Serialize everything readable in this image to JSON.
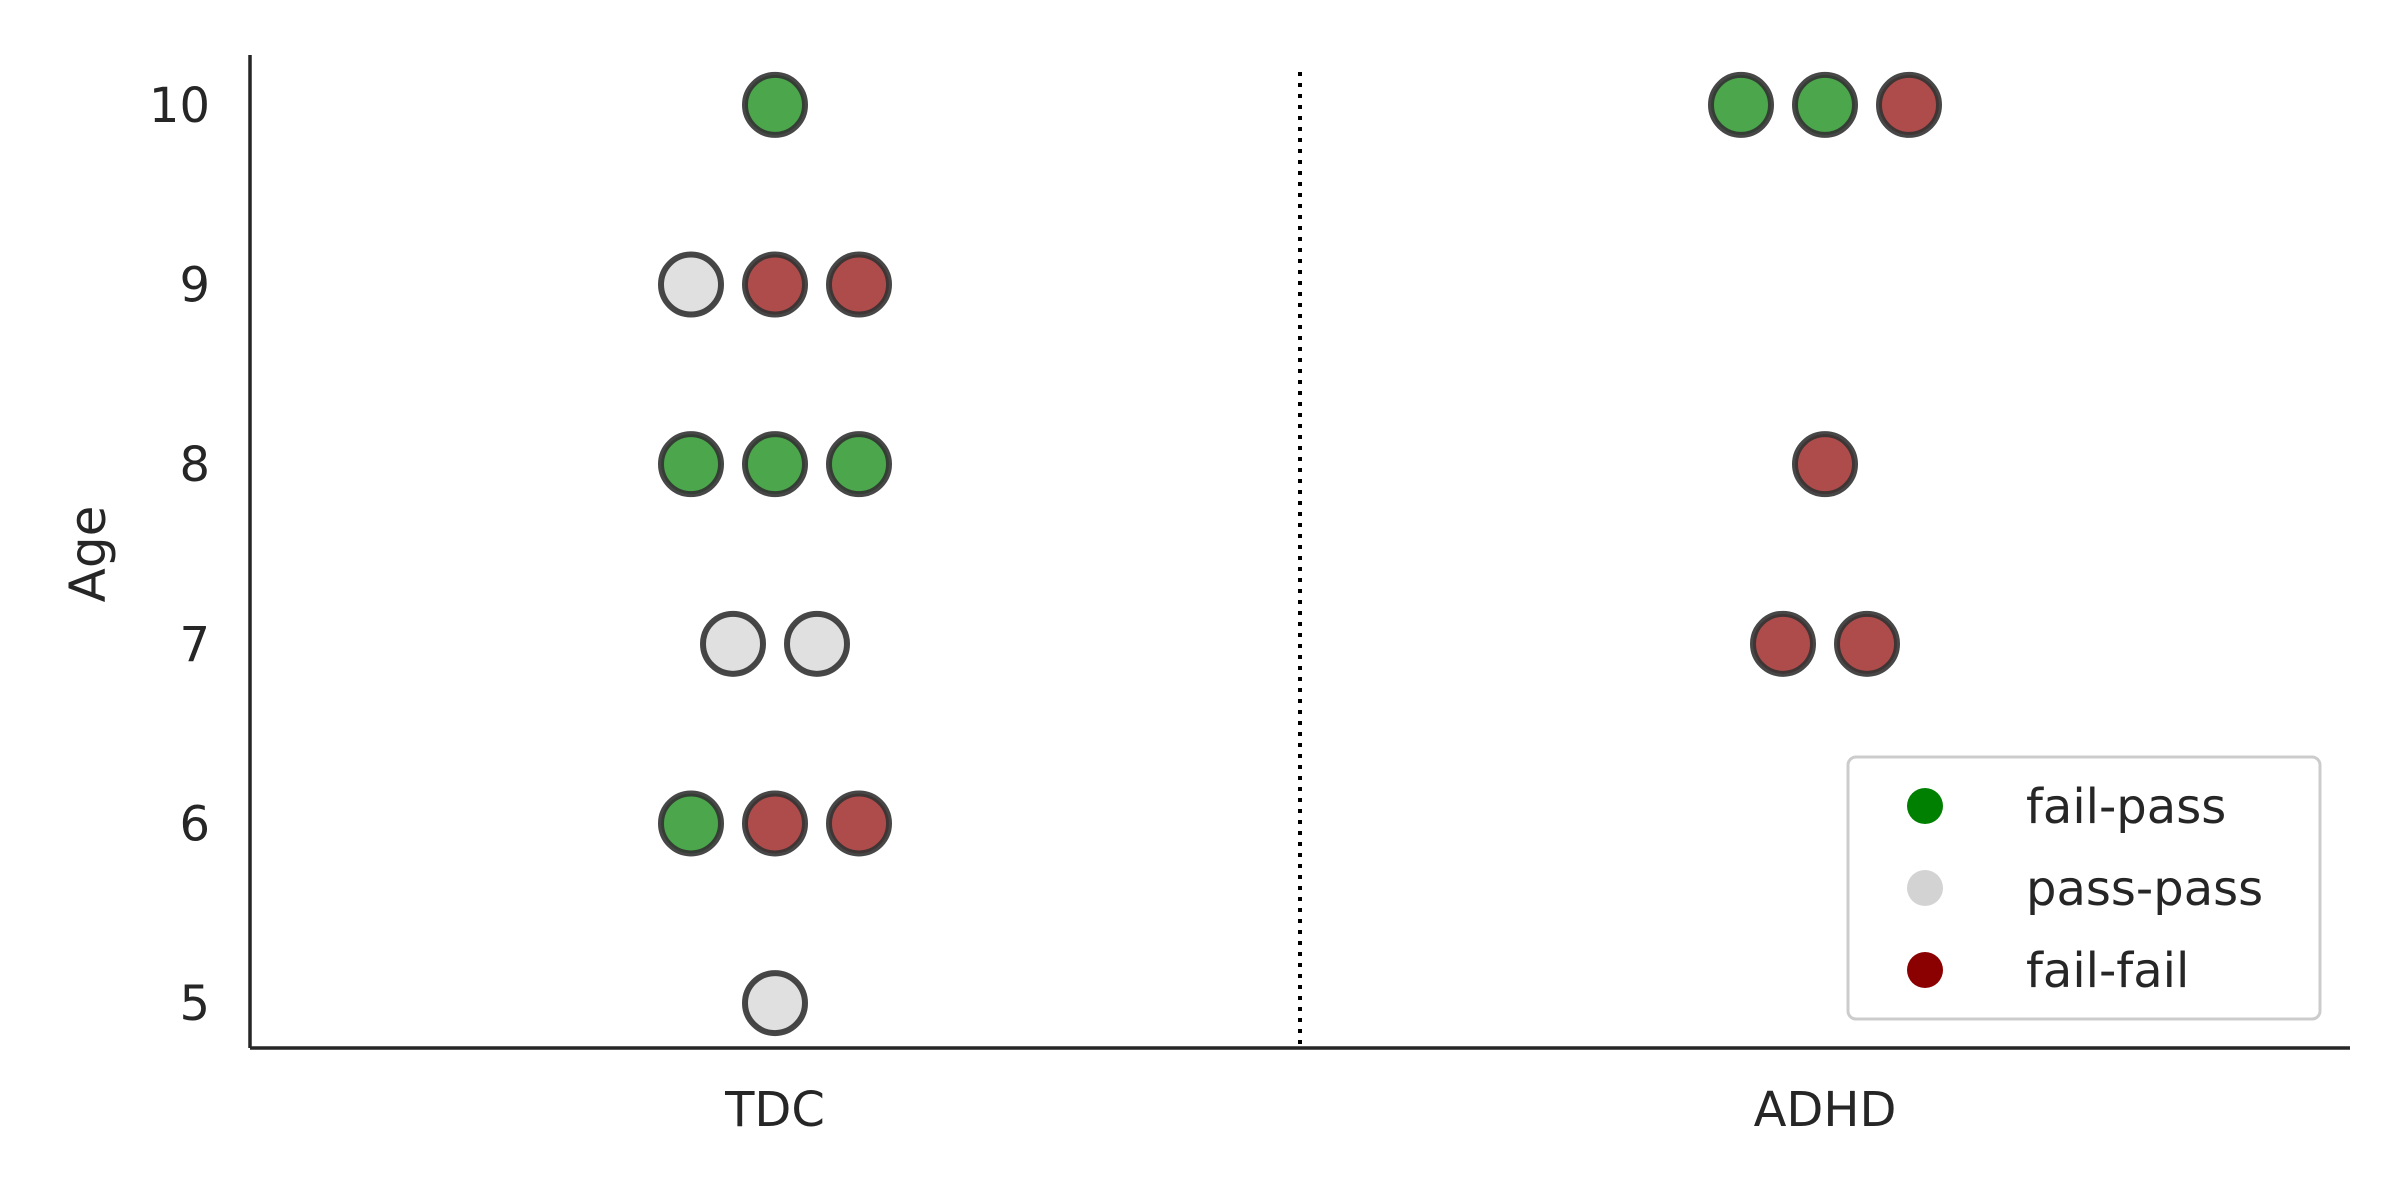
{
  "chart_data": {
    "type": "scatter",
    "ylabel": "Age",
    "categories": [
      "TDC",
      "ADHD"
    ],
    "yticks": [
      5,
      6,
      7,
      8,
      9,
      10
    ],
    "ylim": [
      4.75,
      10.25
    ],
    "grid": false,
    "divider": "dotted vertical line between groups",
    "legend": {
      "position": "lower-right",
      "entries": [
        {
          "label": "fail-pass",
          "color": "#008000"
        },
        {
          "label": "pass-pass",
          "color": "#d3d3d3"
        },
        {
          "label": "fail-fail",
          "color": "#8b0000"
        }
      ]
    },
    "series": [
      {
        "category": "fail-pass",
        "color": "#008000",
        "points": [
          {
            "group": "TDC",
            "age": 10
          },
          {
            "group": "TDC",
            "age": 8
          },
          {
            "group": "TDC",
            "age": 8
          },
          {
            "group": "TDC",
            "age": 8
          },
          {
            "group": "TDC",
            "age": 6
          },
          {
            "group": "ADHD",
            "age": 10
          },
          {
            "group": "ADHD",
            "age": 10
          }
        ]
      },
      {
        "category": "pass-pass",
        "color": "#d3d3d3",
        "points": [
          {
            "group": "TDC",
            "age": 9
          },
          {
            "group": "TDC",
            "age": 7
          },
          {
            "group": "TDC",
            "age": 7
          },
          {
            "group": "TDC",
            "age": 5
          }
        ]
      },
      {
        "category": "fail-fail",
        "color": "#8b0000",
        "points": [
          {
            "group": "TDC",
            "age": 9
          },
          {
            "group": "TDC",
            "age": 9
          },
          {
            "group": "TDC",
            "age": 6
          },
          {
            "group": "TDC",
            "age": 6
          },
          {
            "group": "ADHD",
            "age": 10
          },
          {
            "group": "ADHD",
            "age": 8
          },
          {
            "group": "ADHD",
            "age": 7
          },
          {
            "group": "ADHD",
            "age": 7
          }
        ]
      }
    ]
  }
}
